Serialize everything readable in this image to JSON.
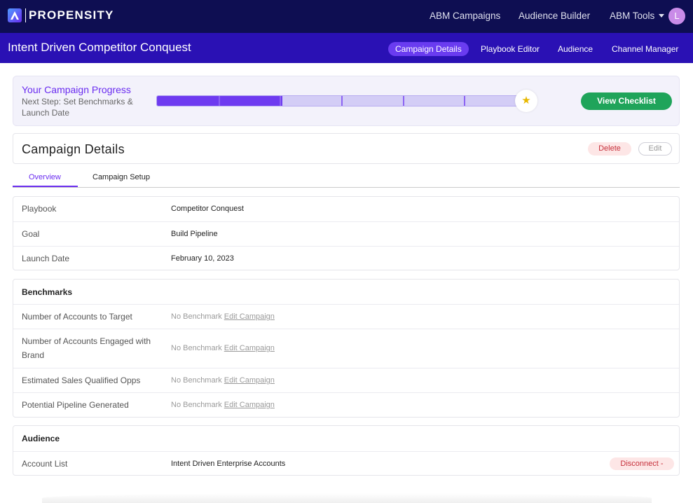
{
  "brand": {
    "name": "PROPENSITY"
  },
  "topnav": {
    "items": [
      "ABM Campaigns",
      "Audience Builder",
      "ABM Tools"
    ],
    "avatar_initial": "L"
  },
  "subheader": {
    "title": "Intent Driven Competitor Conquest",
    "tabs": [
      "Campaign Details",
      "Playbook Editor",
      "Audience",
      "Channel Manager"
    ],
    "active_tab": "Campaign Details"
  },
  "progress": {
    "title": "Your Campaign Progress",
    "next_step": "Next Step: Set Benchmarks & Launch Date",
    "completed_fraction": 0.34,
    "segments": 6,
    "checklist_label": "View Checklist"
  },
  "details": {
    "title": "Campaign Details",
    "delete_label": "Delete",
    "edit_label": "Edit",
    "tabs": [
      "Overview",
      "Campaign Setup"
    ],
    "active_tab": "Overview"
  },
  "overview": [
    {
      "label": "Playbook",
      "value": "Competitor Conquest"
    },
    {
      "label": "Goal",
      "value": "Build Pipeline"
    },
    {
      "label": "Launch Date",
      "value": "February 10, 2023"
    }
  ],
  "benchmarks": {
    "heading": "Benchmarks",
    "rows": [
      {
        "label": "Number of Accounts to Target",
        "value": "No Benchmark",
        "link": "Edit Campaign"
      },
      {
        "label": "Number of Accounts Engaged with Brand",
        "value": "No Benchmark",
        "link": "Edit Campaign"
      },
      {
        "label": "Estimated Sales Qualified Opps",
        "value": "No Benchmark",
        "link": "Edit Campaign"
      },
      {
        "label": "Potential Pipeline Generated",
        "value": "No Benchmark",
        "link": "Edit Campaign"
      }
    ]
  },
  "audience": {
    "heading": "Audience",
    "rows": [
      {
        "label": "Account List",
        "value": "Intent Driven Enterprise Accounts",
        "action": "Disconnect -"
      }
    ]
  },
  "colors": {
    "topnav_bg": "#0e0e52",
    "subheader_bg": "#2a11b4",
    "accent": "#6a2cf0",
    "success": "#1fa45a",
    "danger": "#c6303b"
  }
}
